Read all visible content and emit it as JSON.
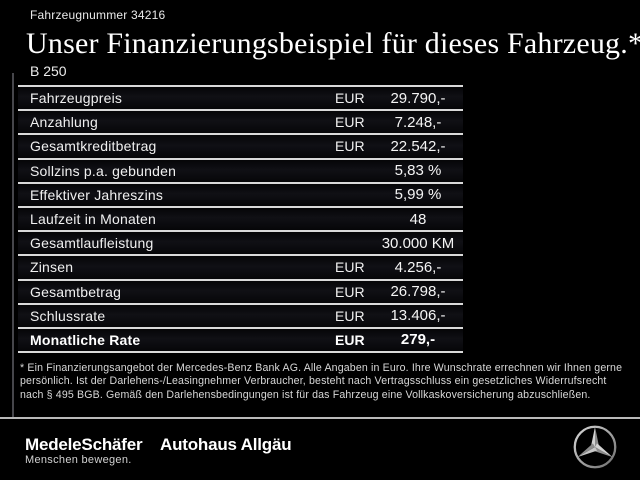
{
  "header": {
    "vehicle_number": "Fahrzeugnummer 34216",
    "title": "Unser Finanzierungsbeispiel für dieses Fahrzeug.*",
    "model": "B 250"
  },
  "financing_table": {
    "rows": [
      {
        "label": "Fahrzeugpreis",
        "currency": "EUR",
        "value": "29.790,-",
        "bold": false
      },
      {
        "label": "Anzahlung",
        "currency": "EUR",
        "value": "7.248,-",
        "bold": false
      },
      {
        "label": "Gesamtkreditbetrag",
        "currency": "EUR",
        "value": "22.542,-",
        "bold": false
      },
      {
        "label": "Sollzins p.a. gebunden",
        "currency": "",
        "value": "5,83 %",
        "bold": false
      },
      {
        "label": "Effektiver Jahreszins",
        "currency": "",
        "value": "5,99 %",
        "bold": false
      },
      {
        "label": "Laufzeit in Monaten",
        "currency": "",
        "value": "48",
        "bold": false
      },
      {
        "label": "Gesamtlaufleistung",
        "currency": "",
        "value": "30.000 KM",
        "bold": false
      },
      {
        "label": "Zinsen",
        "currency": "EUR",
        "value": "4.256,-",
        "bold": false
      },
      {
        "label": "Gesamtbetrag",
        "currency": "EUR",
        "value": "26.798,-",
        "bold": false
      },
      {
        "label": "Schlussrate",
        "currency": "EUR",
        "value": "13.406,-",
        "bold": false
      },
      {
        "label": "Monatliche Rate",
        "currency": "EUR",
        "value": "279,-",
        "bold": true
      }
    ]
  },
  "footnote": "* Ein Finanzierungsangebot der Mercedes-Benz Bank AG. Alle Angaben in Euro. Ihre Wunschrate errechnen wir Ihnen gerne persönlich. Ist der Darlehens-/Leasingnehmer Verbraucher, besteht nach Vertragsschluss ein gesetzliches Widerrufsrecht nach § 495 BGB. Gemäß den Darlehensbedingungen ist für das Fahrzeug eine Vollkaskoversicherung abzuschließen.",
  "footer": {
    "dealer_name": "MedeleSchäfer",
    "dealer_tagline": "Menschen bewegen.",
    "dealer_name_2": "Autohaus Allgäu",
    "brand_icon": "mercedes-star-icon"
  },
  "colors": {
    "background": "#000000",
    "row_background": "#0b0b0e",
    "table_line": "#d9d9d9",
    "text": "#f2f2f2",
    "star_silver": "#b0b0b0"
  }
}
